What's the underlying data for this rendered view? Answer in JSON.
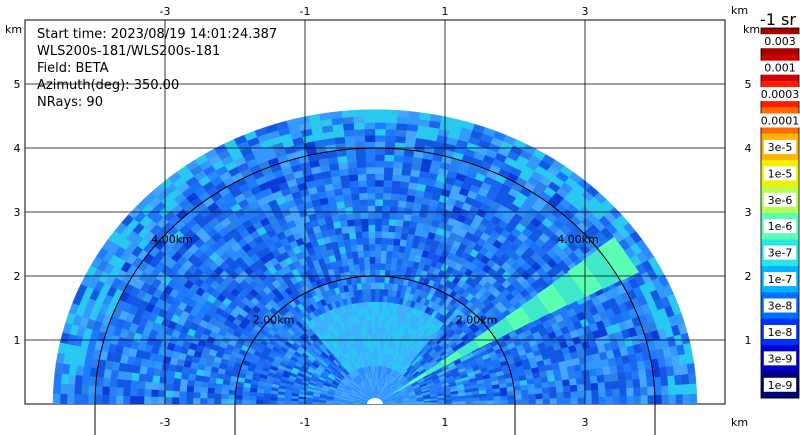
{
  "info": {
    "start_time": "Start time: 2023/08/19 14:01:24.387",
    "instrument": "WLS200s-181/WLS200s-181",
    "field": "Field: BETA",
    "azimuth": "Azimuth(deg): 350.00",
    "nrays": "NRays: 90"
  },
  "chart_data": {
    "type": "heatmap",
    "projection": "polar-sector (RHI-like scan, 0–180 deg)",
    "units_label": "km",
    "x_ticks": [
      "-3",
      "-1",
      "1",
      "3"
    ],
    "x_tick_values": [
      -3,
      -1,
      1,
      3
    ],
    "y_ticks": [
      "1",
      "2",
      "3",
      "4",
      "5"
    ],
    "y_tick_values": [
      1,
      2,
      3,
      4,
      5
    ],
    "xlim": [
      -5,
      5
    ],
    "ylim": [
      0,
      6
    ],
    "max_range_km": 4.6,
    "range_rings": [
      {
        "radius_km": 2,
        "label": "2.00km"
      },
      {
        "radius_km": 4,
        "label": "4.00km"
      }
    ],
    "grid": true,
    "colorbar": {
      "title": "-1 sr",
      "labels": [
        "0.003",
        "0.001",
        "0.0003",
        "0.0001",
        "3e-5",
        "1e-5",
        "3e-6",
        "1e-6",
        "3e-7",
        "1e-7",
        "3e-8",
        "1e-8",
        "3e-9",
        "1e-9"
      ],
      "colors": [
        "#a80000",
        "#d00000",
        "#ff1e00",
        "#ff6a00",
        "#ffb400",
        "#f0f000",
        "#b4ff50",
        "#5affb4",
        "#28e6e6",
        "#00b4ff",
        "#0070ff",
        "#0030ff",
        "#0000c8",
        "#000078"
      ]
    },
    "plume_feature": {
      "description": "",
      "angle_deg": 33,
      "range_km": [
        0.3,
        4.3
      ]
    }
  }
}
